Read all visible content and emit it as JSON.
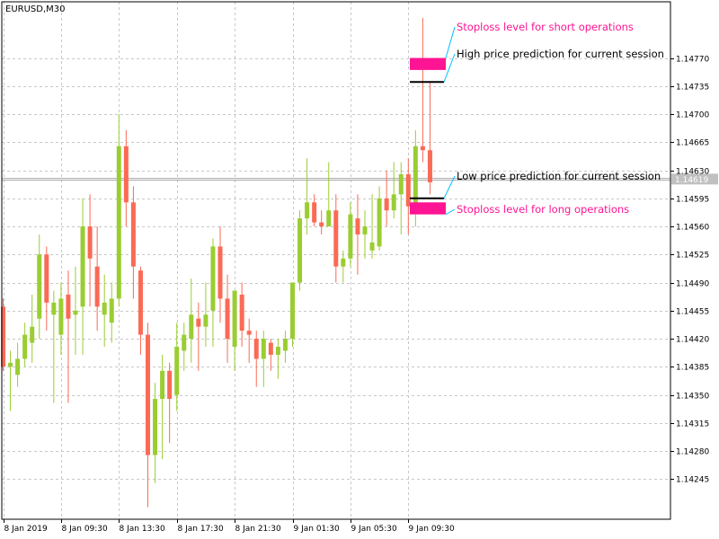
{
  "chart_data": {
    "type": "candlestick",
    "symbol_label": "EURUSD,M30",
    "ylim": [
      1.14195,
      1.1484
    ],
    "y_ticks": [
      1.1477,
      1.14735,
      1.147,
      1.14665,
      1.1463,
      1.14595,
      1.1456,
      1.14525,
      1.1449,
      1.14455,
      1.1442,
      1.14385,
      1.1435,
      1.14315,
      1.1428,
      1.14245
    ],
    "y_tick_labels": [
      "1.14770",
      "1.14735",
      "1.14700",
      "1.14665",
      "1.14630",
      "1.14595",
      "1.14560",
      "1.14525",
      "1.14490",
      "1.14455",
      "1.14420",
      "1.14385",
      "1.14350",
      "1.14315",
      "1.14280",
      "1.14245"
    ],
    "x_tick_labels": [
      "8 Jan 2019",
      "8 Jan 09:30",
      "8 Jan 13:30",
      "8 Jan 17:30",
      "8 Jan 21:30",
      "9 Jan 01:30",
      "9 Jan 05:30",
      "9 Jan 09:30"
    ],
    "x_tick_bar_index": [
      0,
      8,
      16,
      24,
      32,
      40,
      48,
      56
    ],
    "current_price": 1.14619,
    "current_price_label": "1.14619",
    "bull_color": "#9acd32",
    "bear_color": "#fa6a55",
    "candles": [
      [
        1.1446,
        1.1447,
        1.1438,
        1.14385
      ],
      [
        1.14385,
        1.14405,
        1.1433,
        1.1439
      ],
      [
        1.14375,
        1.14415,
        1.1436,
        1.14395
      ],
      [
        1.14395,
        1.1444,
        1.14385,
        1.14425
      ],
      [
        1.14415,
        1.14475,
        1.1439,
        1.14435
      ],
      [
        1.14445,
        1.1455,
        1.1442,
        1.14525
      ],
      [
        1.14525,
        1.14535,
        1.1443,
        1.14465
      ],
      [
        1.1445,
        1.1448,
        1.1434,
        1.14465
      ],
      [
        1.14425,
        1.1449,
        1.144,
        1.1447
      ],
      [
        1.14475,
        1.14505,
        1.1434,
        1.14445
      ],
      [
        1.1445,
        1.1451,
        1.144,
        1.14455
      ],
      [
        1.1446,
        1.14595,
        1.144,
        1.1456
      ],
      [
        1.1456,
        1.146,
        1.1446,
        1.1452
      ],
      [
        1.1451,
        1.1456,
        1.1443,
        1.1446
      ],
      [
        1.1445,
        1.145,
        1.1441,
        1.14465
      ],
      [
        1.1444,
        1.1449,
        1.14415,
        1.1447
      ],
      [
        1.1447,
        1.147,
        1.1446,
        1.1466
      ],
      [
        1.1466,
        1.1468,
        1.1456,
        1.1459
      ],
      [
        1.1459,
        1.1461,
        1.1447,
        1.1451
      ],
      [
        1.14505,
        1.1451,
        1.144,
        1.14425
      ],
      [
        1.14425,
        1.1444,
        1.1421,
        1.14275
      ],
      [
        1.14275,
        1.14365,
        1.1424,
        1.14345
      ],
      [
        1.14345,
        1.144,
        1.1427,
        1.1438
      ],
      [
        1.1438,
        1.1439,
        1.1429,
        1.14345
      ],
      [
        1.1435,
        1.1444,
        1.1433,
        1.1441
      ],
      [
        1.14405,
        1.1444,
        1.1438,
        1.14425
      ],
      [
        1.1442,
        1.14495,
        1.1439,
        1.1445
      ],
      [
        1.14445,
        1.14465,
        1.1438,
        1.14435
      ],
      [
        1.14435,
        1.1449,
        1.1441,
        1.1445
      ],
      [
        1.14455,
        1.14545,
        1.1441,
        1.14535
      ],
      [
        1.14535,
        1.1456,
        1.1444,
        1.1447
      ],
      [
        1.1447,
        1.145,
        1.1439,
        1.1442
      ],
      [
        1.1441,
        1.1448,
        1.1438,
        1.1448
      ],
      [
        1.14475,
        1.1449,
        1.1441,
        1.1443
      ],
      [
        1.1443,
        1.14445,
        1.1439,
        1.14425
      ],
      [
        1.1442,
        1.1443,
        1.1436,
        1.14395
      ],
      [
        1.14395,
        1.1443,
        1.1436,
        1.1442
      ],
      [
        1.14415,
        1.1442,
        1.1438,
        1.144
      ],
      [
        1.144,
        1.1442,
        1.1437,
        1.1441
      ],
      [
        1.14405,
        1.1443,
        1.1439,
        1.1442
      ],
      [
        1.1442,
        1.1449,
        1.1441,
        1.1449
      ],
      [
        1.1449,
        1.1458,
        1.1448,
        1.1457
      ],
      [
        1.1457,
        1.14645,
        1.1455,
        1.1459
      ],
      [
        1.1459,
        1.146,
        1.1456,
        1.14565
      ],
      [
        1.14565,
        1.1458,
        1.1455,
        1.1456
      ],
      [
        1.1456,
        1.1464,
        1.1456,
        1.1458
      ],
      [
        1.1458,
        1.146,
        1.1449,
        1.1451
      ],
      [
        1.1451,
        1.1453,
        1.1449,
        1.1452
      ],
      [
        1.1452,
        1.1459,
        1.1451,
        1.14575
      ],
      [
        1.1457,
        1.146,
        1.145,
        1.1455
      ],
      [
        1.1455,
        1.1458,
        1.1452,
        1.1456
      ],
      [
        1.1453,
        1.146,
        1.1452,
        1.1454
      ],
      [
        1.14535,
        1.1461,
        1.1453,
        1.14595
      ],
      [
        1.14595,
        1.1463,
        1.1456,
        1.1458
      ],
      [
        1.1458,
        1.1464,
        1.1457,
        1.146
      ],
      [
        1.146,
        1.1464,
        1.1455,
        1.14625
      ],
      [
        1.14625,
        1.14645,
        1.1455,
        1.14585
      ],
      [
        1.14585,
        1.1468,
        1.1456,
        1.1466
      ],
      [
        1.1466,
        1.1482,
        1.1464,
        1.14655
      ],
      [
        1.14655,
        1.1474,
        1.146,
        1.14615
      ]
    ],
    "annotations": [
      {
        "label": "Stoploss level for short operations",
        "color": "#ff1493",
        "kind": "stoploss-short",
        "price_low": 1.14755,
        "price_high": 1.1477
      },
      {
        "label": "High price prediction for current session",
        "color": "#000000",
        "kind": "high-prediction",
        "price": 1.1474
      },
      {
        "label": "Low price prediction for current session",
        "color": "#000000",
        "kind": "low-prediction",
        "price": 1.14595
      },
      {
        "label": "Stoploss level for long operations",
        "color": "#ff1493",
        "kind": "stoploss-long",
        "price_low": 1.14575,
        "price_high": 1.1459
      }
    ]
  }
}
